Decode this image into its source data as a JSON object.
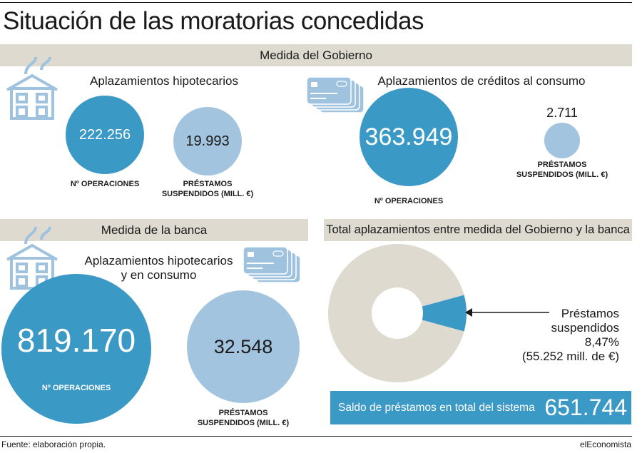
{
  "title": "Situación de las moratorias concedidas",
  "gobierno": {
    "header": "Medida del Gobierno",
    "hipotecarios": {
      "subtitle": "Aplazamientos hipotecarios",
      "operaciones_value": "222.256",
      "operaciones_label": "Nº OPERACIONES",
      "prestamos_value": "19.993",
      "prestamos_label_1": "PRÉSTAMOS",
      "prestamos_label_2": "SUSPENDIDOS (MILL. €)"
    },
    "consumo": {
      "subtitle": "Aplazamientos de créditos al consumo",
      "operaciones_value": "363.949",
      "operaciones_label": "Nº OPERACIONES",
      "prestamos_value": "2.711",
      "prestamos_label_1": "PRÉSTAMOS",
      "prestamos_label_2": "SUSPENDIDOS (MILL. €)"
    }
  },
  "banca": {
    "header": "Medida de la banca",
    "subtitle_1": "Aplazamientos hipotecarios",
    "subtitle_2": "y en consumo",
    "operaciones_value": "819.170",
    "operaciones_label": "Nº OPERACIONES",
    "prestamos_value": "32.548",
    "prestamos_label_1": "PRÉSTAMOS",
    "prestamos_label_2": "SUSPENDIDOS (MILL. €)"
  },
  "total": {
    "header": "Total aplazamientos entre medida del Gobierno y la banca",
    "annotation_1": "Préstamos",
    "annotation_2": "suspendidos",
    "annotation_3": "8,47%",
    "annotation_4": "(55.252 mill. de €)",
    "saldo_label": "Saldo de préstamos en total del sistema",
    "saldo_value": "651.744"
  },
  "footer": {
    "source": "Fuente: elaboración propia.",
    "brand": "elEconomista"
  },
  "colors": {
    "dark_blue": "#3b99c6",
    "light_blue": "#a3c4df",
    "beige": "#dedad0",
    "icon_blue": "#9fc3de"
  },
  "icons": [
    "house-icon",
    "credit-cards-icon"
  ],
  "chart_data": {
    "type": "pie",
    "title": "Total aplazamientos entre medida del Gobierno y la banca",
    "slices": [
      {
        "label": "Préstamos suspendidos",
        "percent": 8.47,
        "value": 55252,
        "unit": "mill. de €"
      },
      {
        "label": "",
        "percent": 91.53
      }
    ],
    "total": 651744
  }
}
